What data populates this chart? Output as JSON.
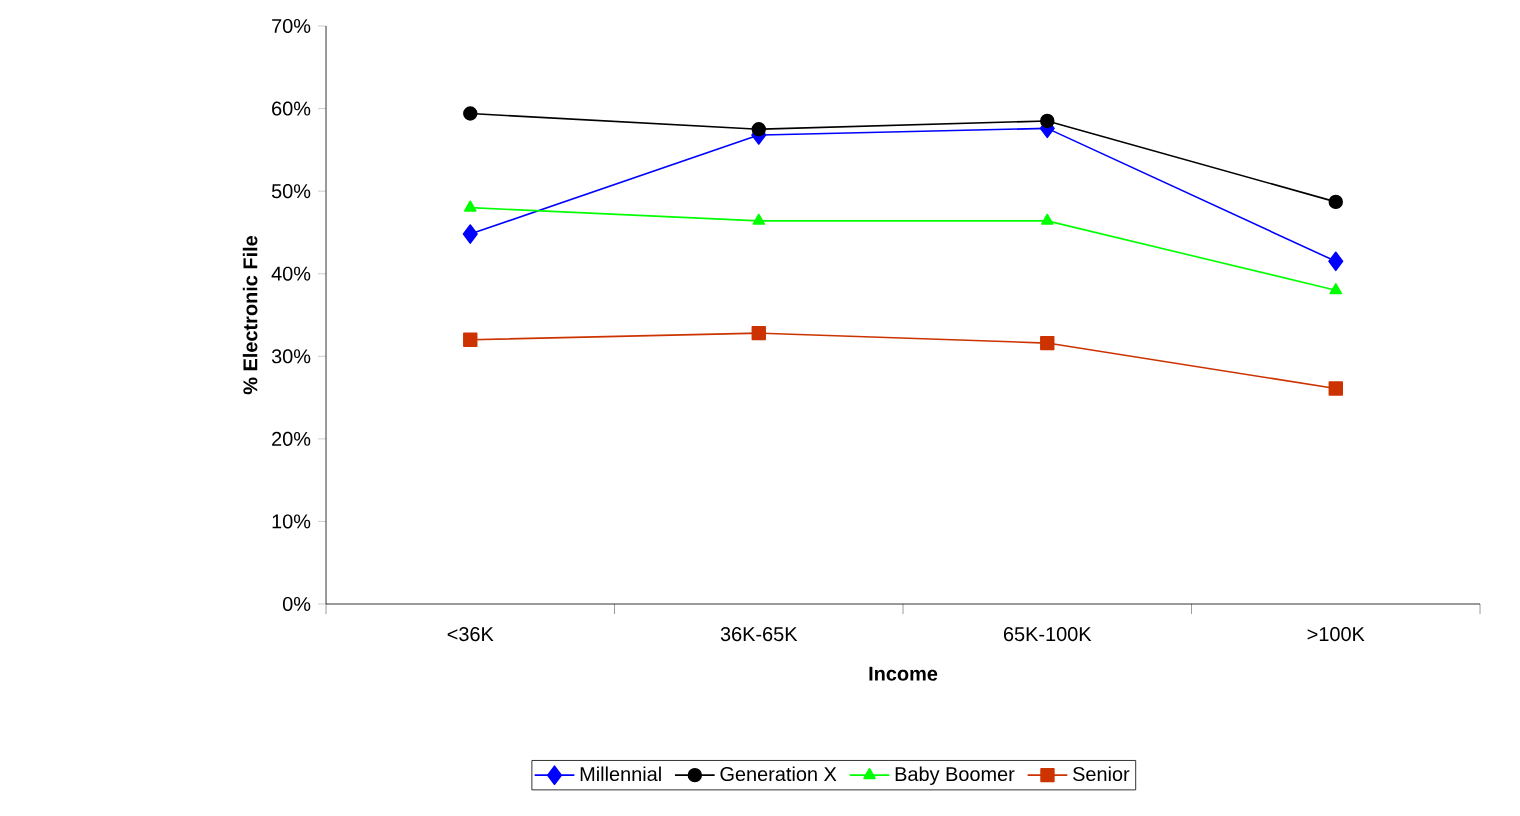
{
  "chart_data": {
    "type": "line",
    "xlabel": "Income",
    "ylabel": "% Electronic File",
    "categories": [
      "<36K",
      "36K-65K",
      "65K-100K",
      ">100K"
    ],
    "series": [
      {
        "name": "Millennial",
        "color": "#0000ff",
        "marker": "diamond",
        "values": [
          44.8,
          56.8,
          57.6,
          41.5
        ]
      },
      {
        "name": "Generation X",
        "color": "#000000",
        "marker": "circle",
        "values": [
          59.4,
          57.5,
          58.5,
          48.7
        ]
      },
      {
        "name": "Baby Boomer",
        "color": "#00ff00",
        "marker": "triangle",
        "values": [
          48.0,
          46.4,
          46.4,
          38.0
        ]
      },
      {
        "name": "Senior",
        "color": "#cc3300",
        "marker": "square",
        "values": [
          32.0,
          32.8,
          31.6,
          26.1
        ]
      }
    ],
    "ylim": [
      0,
      70
    ],
    "yticks": [
      {
        "value": 0,
        "label": "0%"
      },
      {
        "value": 10,
        "label": "10%"
      },
      {
        "value": 20,
        "label": "20%"
      },
      {
        "value": 30,
        "label": "30%"
      },
      {
        "value": 40,
        "label": "40%"
      },
      {
        "value": 50,
        "label": "50%"
      },
      {
        "value": 60,
        "label": "60%"
      },
      {
        "value": 70,
        "label": "70%"
      }
    ],
    "grid": false,
    "legend": "bottom"
  }
}
